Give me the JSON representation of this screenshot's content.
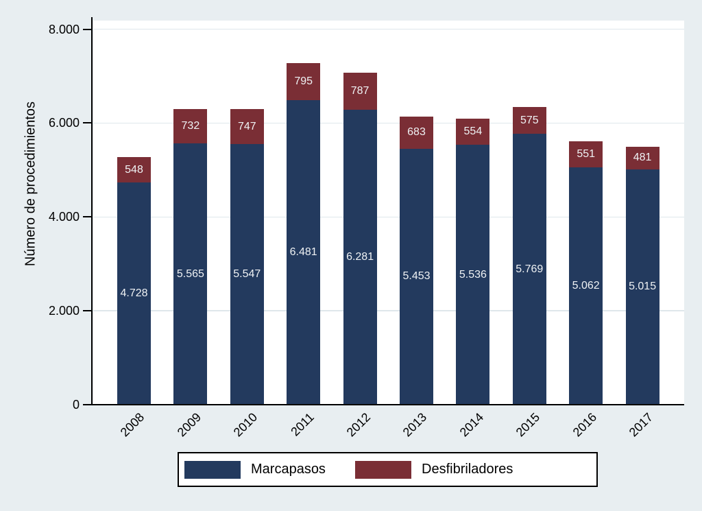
{
  "figure": {
    "background_color": "#E8EEF1",
    "plot_background_color": "#FFFFFF",
    "gridline_color": "#DFE7EB",
    "axis_color": "#000000",
    "bar_label_color": "#EFF2F4"
  },
  "chart_data": {
    "type": "bar",
    "stacked": true,
    "title": "",
    "xlabel": "",
    "ylabel": "Número de procedimientos",
    "categories": [
      "2008",
      "2009",
      "2010",
      "2011",
      "2012",
      "2013",
      "2014",
      "2015",
      "2016",
      "2017"
    ],
    "series": [
      {
        "name": "Marcapasos",
        "color": "#233A5E",
        "values": [
          4728,
          5565,
          5547,
          6481,
          6281,
          5453,
          5536,
          5769,
          5062,
          5015
        ],
        "value_labels": [
          "4.728",
          "5.565",
          "5.547",
          "6.481",
          "6.281",
          "5.453",
          "5.536",
          "5.769",
          "5.062",
          "5.015"
        ]
      },
      {
        "name": "Desfibriladores",
        "color": "#7A2E35",
        "values": [
          548,
          732,
          747,
          795,
          787,
          683,
          554,
          575,
          551,
          481
        ],
        "value_labels": [
          "548",
          "732",
          "747",
          "795",
          "787",
          "683",
          "554",
          "575",
          "551",
          "481"
        ]
      }
    ],
    "ylim": [
      0,
      8000
    ],
    "yticks": [
      {
        "value": 0,
        "label": "0"
      },
      {
        "value": 2000,
        "label": "2.000"
      },
      {
        "value": 4000,
        "label": "4.000"
      },
      {
        "value": 6000,
        "label": "6.000"
      },
      {
        "value": 8000,
        "label": "8.000"
      }
    ],
    "grid": true,
    "legend_position": "bottom"
  }
}
